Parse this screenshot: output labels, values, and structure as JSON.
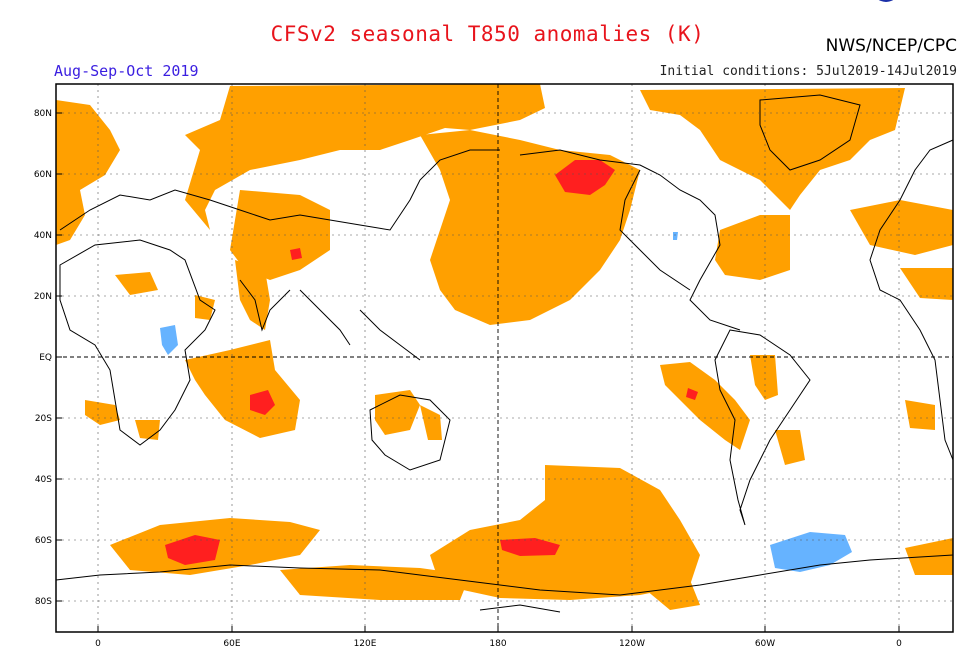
{
  "title": "CFSv2 seasonal T850 anomalies (K)",
  "organization": "NWS/NCEP/CPC",
  "season": "Aug-Sep-Oct 2019",
  "initial_conditions": "Initial conditions: 5Jul2019-14Jul2019",
  "logo_icon": "noaa-logo-icon",
  "lat_labels": [
    "80N",
    "60N",
    "40N",
    "20N",
    "EQ",
    "20S",
    "40S",
    "60S",
    "80S"
  ],
  "lon_labels": [
    "0",
    "60E",
    "120E",
    "180",
    "120W",
    "60W",
    "0"
  ],
  "colors": {
    "moderate_warm": "#ffa000",
    "strong_warm": "#ff1f1f",
    "cool": "#66b3ff",
    "title": "#e8141c",
    "season": "#3a1ee0"
  }
}
